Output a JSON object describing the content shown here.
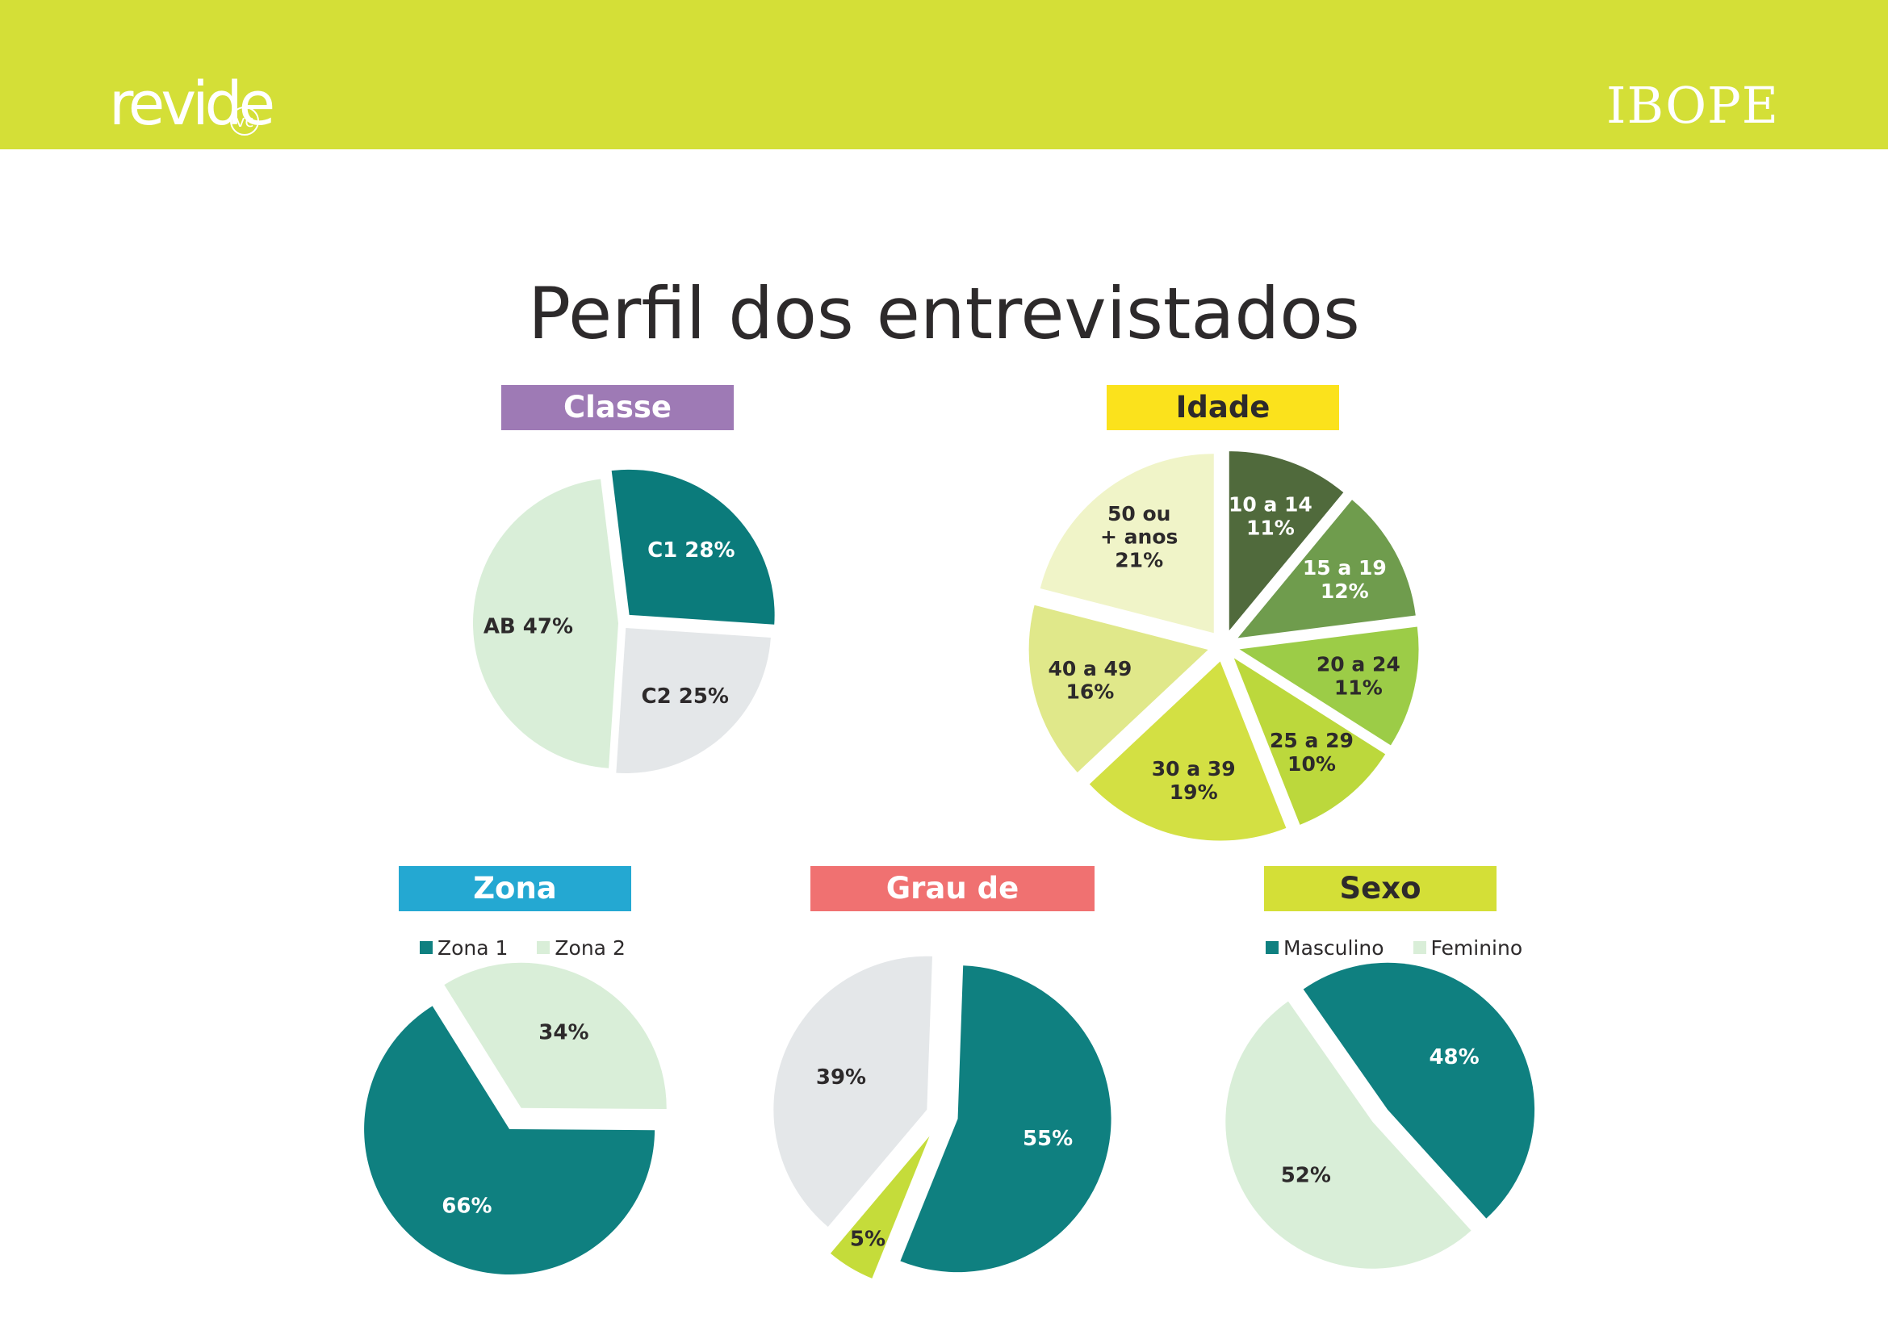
{
  "header": {
    "logo_left": "revide",
    "logo_left_sub": "vc",
    "logo_right": "IBOPE",
    "bar_color": "#d4df37"
  },
  "page_title": "Perfil dos entrevistados",
  "chart_data": [
    {
      "type": "pie",
      "title": "Classe",
      "title_bg": "#9e7ab5",
      "title_color": "#ffffff",
      "start_angle": -7,
      "slices": [
        {
          "label": "C1 28%",
          "value": 28,
          "color": "#0b7b7b",
          "text_color": "#ffffff",
          "explode": 14
        },
        {
          "label": "C2 25%",
          "value": 25,
          "color": "#e4e7e9",
          "text_color": "#2d2a2b",
          "explode": 8
        },
        {
          "label": "AB 47%",
          "value": 47,
          "color": "#d9eed8",
          "text_color": "#2d2a2b",
          "explode": 4
        }
      ]
    },
    {
      "type": "pie",
      "title": "Idade",
      "title_bg": "#fbe21c",
      "title_color": "#2d2a2b",
      "start_angle": 0,
      "slices": [
        {
          "label": [
            "10 a 14",
            "11%"
          ],
          "value": 11,
          "color": "#506a3c",
          "text_color": "#ffffff",
          "explode": 20
        },
        {
          "label": [
            "15 a 19",
            "12%"
          ],
          "value": 12,
          "color": "#6f9c4d",
          "text_color": "#ffffff",
          "explode": 20
        },
        {
          "label": [
            "20 a 24",
            "11%"
          ],
          "value": 11,
          "color": "#9ccc47",
          "text_color": "#2d2a2b",
          "explode": 20
        },
        {
          "label": [
            "25 a 29",
            "10%"
          ],
          "value": 10,
          "color": "#bcd83c",
          "text_color": "#2d2a2b",
          "explode": 20
        },
        {
          "label": [
            "30 a 39",
            "19%"
          ],
          "value": 19,
          "color": "#d3e043",
          "text_color": "#2d2a2b",
          "explode": 20
        },
        {
          "label": [
            "40 a 49",
            "16%"
          ],
          "value": 16,
          "color": "#e0e88a",
          "text_color": "#2d2a2b",
          "explode": 20
        },
        {
          "label": [
            "50 ou",
            "+ anos",
            "21%"
          ],
          "value": 21,
          "color": "#f0f4c8",
          "text_color": "#2d2a2b",
          "explode": 20
        }
      ]
    },
    {
      "type": "pie",
      "title": "Zona",
      "title_bg": "#24a8d2",
      "title_color": "#ffffff",
      "start_angle": -32,
      "legend": [
        {
          "name": "Zona 1",
          "color": "#0f8080"
        },
        {
          "name": "Zona 2",
          "color": "#d9eed8"
        }
      ],
      "slices": [
        {
          "label": "34%",
          "value": 34,
          "color": "#d9eed8",
          "text_color": "#2d2a2b",
          "explode": 22
        },
        {
          "label": "66%",
          "value": 66,
          "color": "#0f8080",
          "text_color": "#ffffff",
          "explode": 8
        }
      ]
    },
    {
      "type": "pie",
      "title": "Grau de Instrução",
      "title_bg": "#f07171",
      "title_color": "#ffffff",
      "start_angle": 2,
      "slices": [
        {
          "label": "55%",
          "value": 55,
          "color": "#0f8080",
          "text_color": "#ffffff",
          "explode": 20
        },
        {
          "label": "5%",
          "value": 5,
          "color": "#c5dc3a",
          "text_color": "#2d2a2b",
          "explode": 30
        },
        {
          "label": "39%",
          "value": 39,
          "color": "#e4e7e9",
          "text_color": "#2d2a2b",
          "explode": 20
        }
      ]
    },
    {
      "type": "pie",
      "title": "Sexo",
      "title_bg": "#d4df37",
      "title_color": "#2d2a2b",
      "start_angle": -35,
      "legend": [
        {
          "name": "Masculino",
          "color": "#0f8080"
        },
        {
          "name": "Feminino",
          "color": "#d9eed8"
        }
      ],
      "slices": [
        {
          "label": "48%",
          "value": 48,
          "color": "#0f8080",
          "text_color": "#ffffff",
          "explode": 18
        },
        {
          "label": "52%",
          "value": 52,
          "color": "#d9eed8",
          "text_color": "#2d2a2b",
          "explode": 6
        }
      ]
    }
  ]
}
